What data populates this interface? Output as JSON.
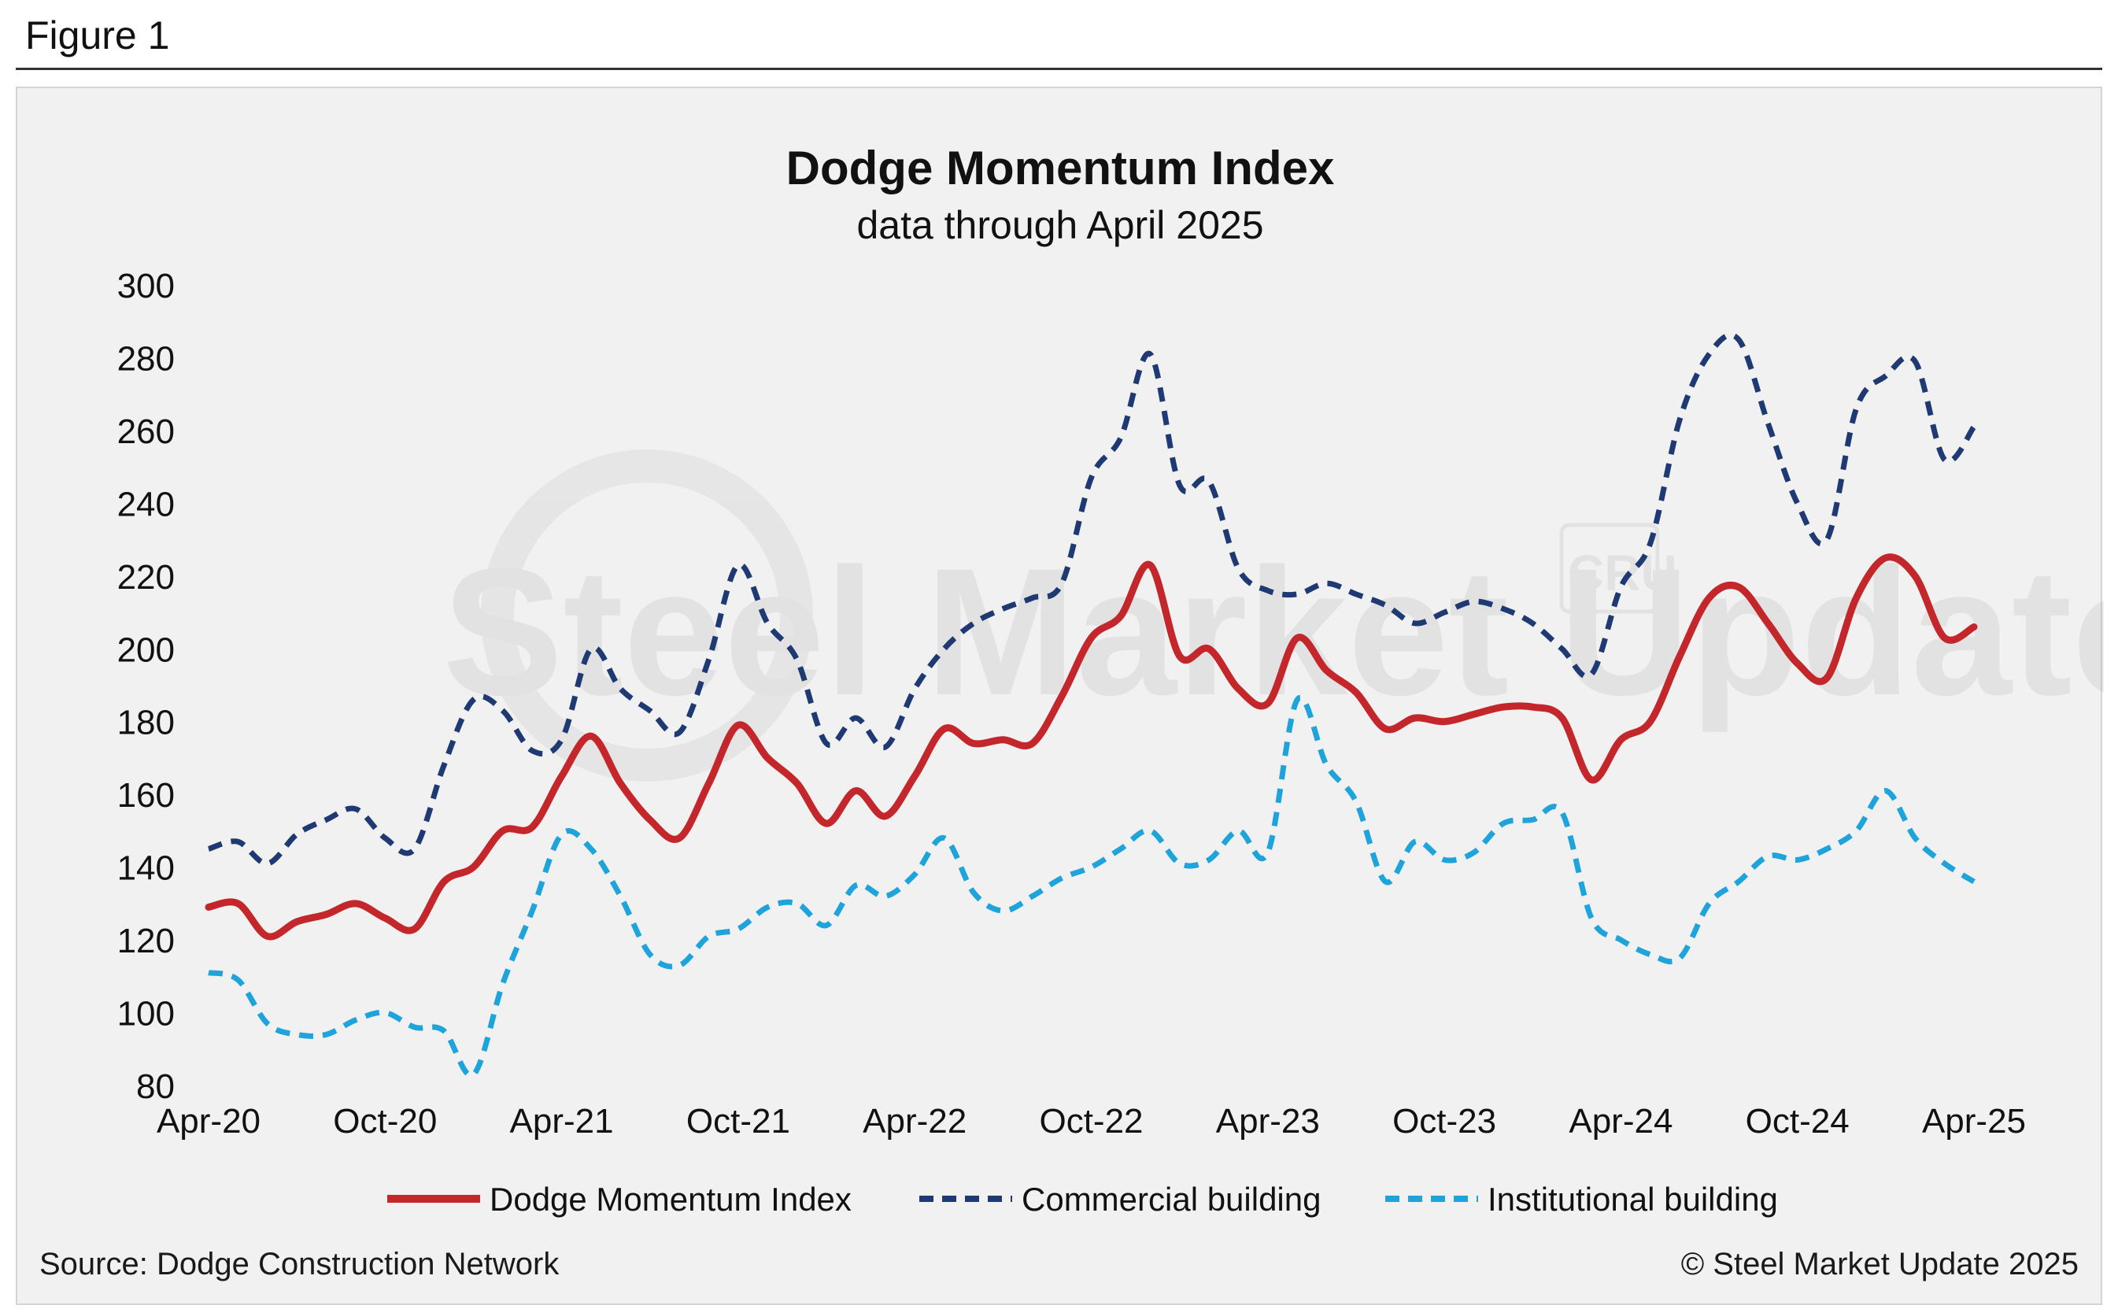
{
  "figure_label": "Figure 1",
  "footer": {
    "source": "Source: Dodge Construction Network",
    "copyright": "© Steel Market Update 2025"
  },
  "watermark": {
    "text": "Steel Market Update",
    "logo_text": "CRU"
  },
  "colors": {
    "dmi": "#c4272b",
    "commercial": "#1f3a73",
    "institutional": "#1ea4db",
    "background": "#f1f1f1"
  },
  "chart_data": {
    "type": "line",
    "title": "Dodge Momentum Index",
    "subtitle": "data through April 2025",
    "xlabel": "",
    "ylabel": "",
    "ylim": [
      80,
      300
    ],
    "yticks": [
      80,
      100,
      120,
      140,
      160,
      180,
      200,
      220,
      240,
      260,
      280,
      300
    ],
    "xtick_labels": [
      "Apr-20",
      "Oct-20",
      "Apr-21",
      "Oct-21",
      "Apr-22",
      "Oct-22",
      "Apr-23",
      "Oct-23",
      "Apr-24",
      "Oct-24",
      "Apr-25"
    ],
    "x": [
      "2020-04",
      "2020-05",
      "2020-06",
      "2020-07",
      "2020-08",
      "2020-09",
      "2020-10",
      "2020-11",
      "2020-12",
      "2021-01",
      "2021-02",
      "2021-03",
      "2021-04",
      "2021-05",
      "2021-06",
      "2021-07",
      "2021-08",
      "2021-09",
      "2021-10",
      "2021-11",
      "2021-12",
      "2022-01",
      "2022-02",
      "2022-03",
      "2022-04",
      "2022-05",
      "2022-06",
      "2022-07",
      "2022-08",
      "2022-09",
      "2022-10",
      "2022-11",
      "2022-12",
      "2023-01",
      "2023-02",
      "2023-03",
      "2023-04",
      "2023-05",
      "2023-06",
      "2023-07",
      "2023-08",
      "2023-09",
      "2023-10",
      "2023-11",
      "2023-12",
      "2024-01",
      "2024-02",
      "2024-03",
      "2024-04",
      "2024-05",
      "2024-06",
      "2024-07",
      "2024-08",
      "2024-09",
      "2024-10",
      "2024-11",
      "2024-12",
      "2025-01",
      "2025-02",
      "2025-03",
      "2025-04"
    ],
    "grid": false,
    "legend_position": "bottom",
    "series": [
      {
        "name": "Dodge Momentum Index",
        "style": "solid",
        "color": "#c4272b",
        "values": [
          129,
          130,
          121,
          125,
          127,
          130,
          126,
          123,
          136,
          140,
          150,
          151,
          165,
          176,
          163,
          153,
          148,
          163,
          179,
          170,
          163,
          152,
          161,
          154,
          165,
          178,
          174,
          175,
          174,
          187,
          203,
          209,
          223,
          198,
          200,
          189,
          185,
          203,
          194,
          188,
          178,
          181,
          180,
          182,
          184,
          184,
          181,
          164,
          175,
          180,
          198,
          214,
          217,
          207,
          196,
          192,
          214,
          225,
          220,
          203,
          206
        ]
      },
      {
        "name": "Commercial building",
        "style": "dashed",
        "color": "#1f3a73",
        "values": [
          145,
          147,
          141,
          149,
          153,
          156,
          148,
          145,
          168,
          186,
          183,
          172,
          175,
          200,
          189,
          183,
          177,
          197,
          223,
          207,
          197,
          174,
          181,
          173,
          189,
          200,
          207,
          211,
          214,
          218,
          247,
          258,
          281,
          245,
          246,
          222,
          216,
          215,
          218,
          215,
          212,
          207,
          210,
          213,
          211,
          207,
          200,
          193,
          217,
          229,
          263,
          281,
          285,
          262,
          240,
          230,
          266,
          275,
          279,
          252,
          261
        ]
      },
      {
        "name": "Institutional building",
        "style": "dashed",
        "color": "#1ea4db",
        "values": [
          111,
          109,
          97,
          94,
          94,
          98,
          100,
          96,
          95,
          83,
          108,
          128,
          149,
          145,
          132,
          116,
          113,
          121,
          123,
          129,
          130,
          124,
          135,
          132,
          138,
          148,
          133,
          128,
          132,
          137,
          140,
          145,
          150,
          141,
          142,
          150,
          144,
          186,
          168,
          158,
          136,
          147,
          142,
          144,
          152,
          153,
          155,
          126,
          120,
          116,
          115,
          130,
          136,
          143,
          142,
          145,
          150,
          161,
          148,
          141,
          136
        ]
      }
    ]
  }
}
